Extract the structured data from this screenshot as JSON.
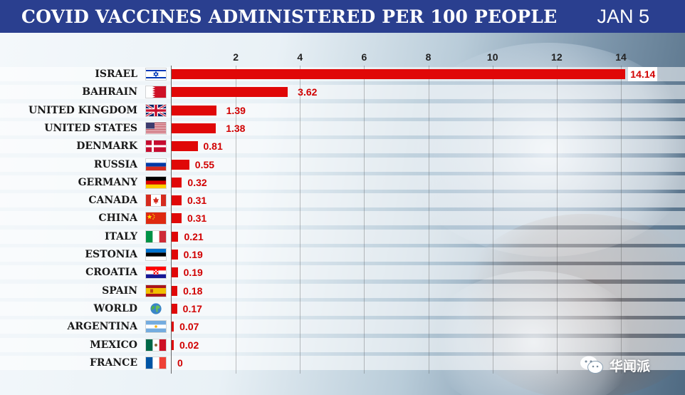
{
  "header": {
    "title": "COVID VACCINES ADMINISTERED PER 100 PEOPLE",
    "date": "JAN 5"
  },
  "chart_data": {
    "type": "bar",
    "orientation": "horizontal",
    "title": "COVID VACCINES ADMINISTERED PER 100 PEOPLE",
    "xlim": [
      0,
      14.5
    ],
    "xticks": [
      2,
      4,
      6,
      8,
      10,
      12,
      14
    ],
    "grid": true,
    "categories": [
      "ISRAEL",
      "BAHRAIN",
      "UNITED KINGDOM",
      "UNITED STATES",
      "DENMARK",
      "RUSSIA",
      "GERMANY",
      "CANADA",
      "CHINA",
      "ITALY",
      "ESTONIA",
      "CROATIA",
      "SPAIN",
      "WORLD",
      "ARGENTINA",
      "MEXICO",
      "FRANCE"
    ],
    "values": [
      14.14,
      3.62,
      1.39,
      1.38,
      0.81,
      0.55,
      0.32,
      0.31,
      0.31,
      0.21,
      0.19,
      0.19,
      0.18,
      0.17,
      0.07,
      0.02,
      0
    ],
    "value_labels": [
      "14.14",
      "3.62",
      "1.39",
      "1.38",
      "0.81",
      "0.55",
      "0.32",
      "0.31",
      "0.31",
      "0.21",
      "0.19",
      "0.19",
      "0.18",
      "0.17",
      "0.07",
      "0.02",
      "0"
    ],
    "flags": [
      "israel-flag",
      "bahrain-flag",
      "united-kingdom-flag",
      "united-states-flag",
      "denmark-flag",
      "russia-flag",
      "germany-flag",
      "canada-flag",
      "china-flag",
      "italy-flag",
      "estonia-flag",
      "croatia-flag",
      "spain-flag",
      "world-globe-icon",
      "argentina-flag",
      "mexico-flag",
      "france-flag"
    ],
    "bar_color": "#e00808",
    "label_color": "#d10000"
  },
  "header_color": "#2a3f8f",
  "watermark": {
    "icon": "wechat-icon",
    "text": "华闻派"
  }
}
